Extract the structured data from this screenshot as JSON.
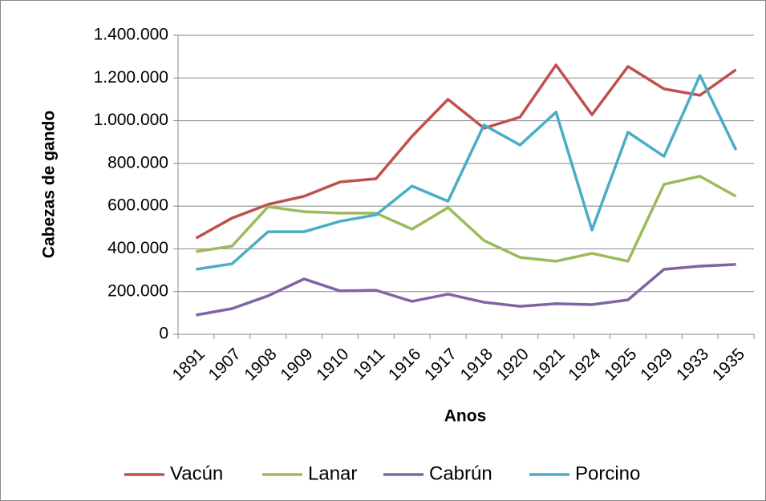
{
  "chart_data": {
    "type": "line",
    "categories": [
      "1891",
      "1907",
      "1908",
      "1909",
      "1910",
      "1911",
      "1916",
      "1917",
      "1918",
      "1920",
      "1921",
      "1924",
      "1925",
      "1929",
      "1933",
      "1935"
    ],
    "x_label": "Anos",
    "y_label": "Cabezas de gando",
    "ylim": [
      0,
      1400000
    ],
    "yticks": [
      0,
      {
        "value": 200000,
        "label": "200.000"
      },
      {
        "value": 400000,
        "label": "400.000"
      },
      {
        "value": 600000,
        "label": "600.000"
      },
      {
        "value": 800000,
        "label": "800.000"
      },
      {
        "value": 1000000,
        "label": "1.000.000"
      },
      {
        "value": 1200000,
        "label": "1.200.000"
      },
      {
        "value": 1400000,
        "label": "1.400.000"
      }
    ],
    "grid": true,
    "legend": "bottom",
    "series": [
      {
        "name": "Vacún",
        "color": "#c0504d",
        "values": [
          450000,
          544000,
          608000,
          646000,
          713000,
          728000,
          927000,
          1100000,
          965000,
          1017000,
          1261000,
          1028000,
          1254000,
          1149000,
          1119000,
          1239000
        ]
      },
      {
        "name": "Lanar",
        "color": "#9bbb59",
        "values": [
          387000,
          413000,
          597000,
          574000,
          567000,
          567000,
          492000,
          593000,
          439000,
          360000,
          342000,
          379000,
          342000,
          702000,
          740000,
          646000
        ]
      },
      {
        "name": "Cabrún",
        "color": "#8064a2",
        "values": [
          90000,
          120000,
          180000,
          259000,
          203000,
          206000,
          154000,
          188000,
          150000,
          131000,
          143000,
          139000,
          161000,
          304000,
          319000,
          327000
        ]
      },
      {
        "name": "Porcino",
        "color": "#4bacc6",
        "values": [
          304000,
          330000,
          480000,
          480000,
          529000,
          559000,
          694000,
          623000,
          980000,
          886000,
          1040000,
          488000,
          946000,
          833000,
          1212000,
          863000
        ]
      }
    ]
  }
}
